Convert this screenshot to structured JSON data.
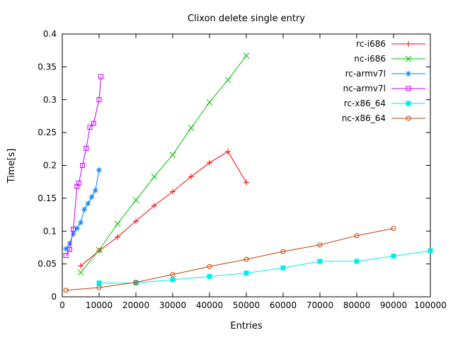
{
  "window": {
    "title": "Clixon delete single entry"
  },
  "chart_data": {
    "type": "line",
    "title": "Clixon delete single entry",
    "xlabel": "Entries",
    "ylabel": "Time[s]",
    "xlim": [
      0,
      100000
    ],
    "ylim": [
      0,
      0.4
    ],
    "xticks": [
      0,
      10000,
      20000,
      30000,
      40000,
      50000,
      60000,
      70000,
      80000,
      90000,
      100000
    ],
    "xtick_labels": [
      "0",
      "10000",
      "20000",
      "30000",
      "40000",
      "50000",
      "60000",
      "70000",
      "80000",
      "90000",
      "100000"
    ],
    "yticks": [
      0,
      0.05,
      0.1,
      0.15,
      0.2,
      0.25,
      0.3,
      0.35,
      0.4
    ],
    "ytick_labels": [
      "0",
      "0.05",
      "0.1",
      "0.15",
      "0.2",
      "0.25",
      "0.3",
      "0.35",
      "0.4"
    ],
    "grid": false,
    "legend_position": "top-right-inside",
    "series": [
      {
        "name": "rc-i686",
        "color": "#ff0000",
        "marker": "plus",
        "points": [
          [
            5000,
            0.047
          ],
          [
            10000,
            0.07
          ],
          [
            15000,
            0.091
          ],
          [
            20000,
            0.115
          ],
          [
            25000,
            0.139
          ],
          [
            30000,
            0.16
          ],
          [
            35000,
            0.183
          ],
          [
            40000,
            0.204
          ],
          [
            45000,
            0.221
          ],
          [
            50000,
            0.174
          ]
        ]
      },
      {
        "name": "nc-i686",
        "color": "#00c000",
        "marker": "cross",
        "points": [
          [
            5000,
            0.037
          ],
          [
            10000,
            0.071
          ],
          [
            15000,
            0.111
          ],
          [
            20000,
            0.147
          ],
          [
            25000,
            0.183
          ],
          [
            30000,
            0.216
          ],
          [
            35000,
            0.257
          ],
          [
            40000,
            0.296
          ],
          [
            45000,
            0.33
          ],
          [
            50000,
            0.367
          ]
        ]
      },
      {
        "name": "rc-armv7l",
        "color": "#0080ff",
        "marker": "asterisk",
        "points": [
          [
            1000,
            0.073
          ],
          [
            2000,
            0.081
          ],
          [
            3000,
            0.096
          ],
          [
            4000,
            0.104
          ],
          [
            5000,
            0.113
          ],
          [
            6000,
            0.133
          ],
          [
            7000,
            0.142
          ],
          [
            8000,
            0.152
          ],
          [
            9000,
            0.162
          ],
          [
            10000,
            0.193
          ]
        ]
      },
      {
        "name": "nc-armv7l",
        "color": "#c000ff",
        "marker": "square-open",
        "points": [
          [
            1000,
            0.063
          ],
          [
            2000,
            0.072
          ],
          [
            3000,
            0.103
          ],
          [
            4000,
            0.168
          ],
          [
            4500,
            0.173
          ],
          [
            5500,
            0.2
          ],
          [
            6500,
            0.226
          ],
          [
            7500,
            0.258
          ],
          [
            8500,
            0.264
          ],
          [
            10000,
            0.3
          ],
          [
            10500,
            0.335
          ]
        ]
      },
      {
        "name": "rc-x86_64",
        "color": "#00eeee",
        "marker": "square-filled",
        "points": [
          [
            10000,
            0.021
          ],
          [
            20000,
            0.021
          ],
          [
            30000,
            0.026
          ],
          [
            40000,
            0.031
          ],
          [
            50000,
            0.036
          ],
          [
            60000,
            0.044
          ],
          [
            70000,
            0.054
          ],
          [
            80000,
            0.054
          ],
          [
            90000,
            0.062
          ],
          [
            100000,
            0.07
          ]
        ]
      },
      {
        "name": "nc-x86_64",
        "color": "#c04000",
        "marker": "circle-open",
        "points": [
          [
            1000,
            0.01
          ],
          [
            10000,
            0.014
          ],
          [
            20000,
            0.022
          ],
          [
            30000,
            0.034
          ],
          [
            40000,
            0.046
          ],
          [
            50000,
            0.057
          ],
          [
            60000,
            0.069
          ],
          [
            70000,
            0.079
          ],
          [
            80000,
            0.093
          ],
          [
            90000,
            0.104
          ]
        ]
      }
    ]
  }
}
